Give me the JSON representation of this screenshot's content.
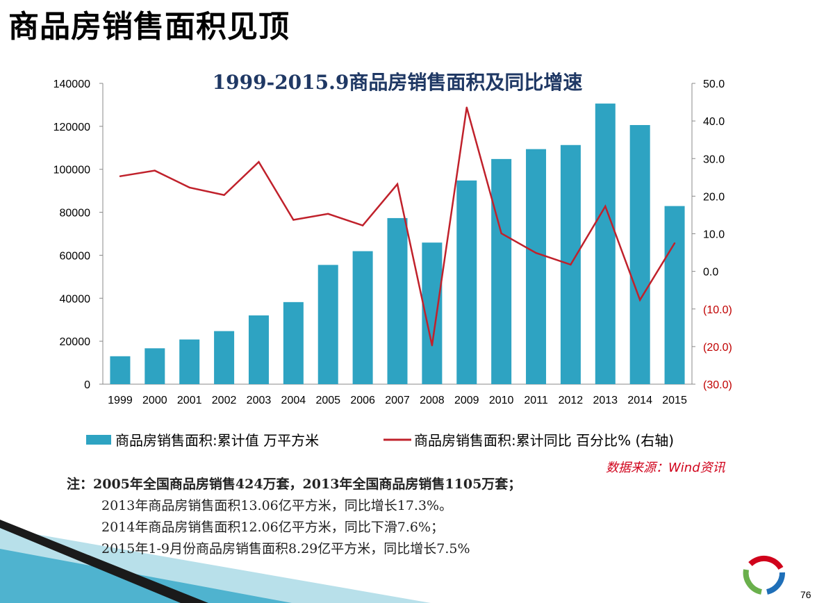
{
  "slide": {
    "title": "商品房销售面积见顶",
    "source": "数据来源：Wind资讯",
    "notes": [
      "注：2005年全国商品房销售424万套，2013年全国商品房销售1105万套；",
      "2013年商品房销售面积13.06亿平方米，同比增长17.3%。",
      "2014年商品房销售面积12.06亿平方米，同比下滑7.6%；",
      "2015年1-9月份商品房销售面积8.29亿平方米，同比增长7.5%"
    ],
    "page_number": "76"
  },
  "colors": {
    "bar": "#2ea3c2",
    "line": "#c0212b",
    "negative_tick": "#c00000",
    "title": "#1f3864"
  },
  "chart_data": {
    "type": "bar+line",
    "title": "1999-2015.9商品房销售面积及同比增速",
    "categories": [
      "1999",
      "2000",
      "2001",
      "2002",
      "2003",
      "2004",
      "2005",
      "2006",
      "2007",
      "2008",
      "2009",
      "2010",
      "2011",
      "2012",
      "2013",
      "2014",
      "2015"
    ],
    "series": [
      {
        "name": "商品房销售面积:累计值 万平方米",
        "type": "bar",
        "axis": "left",
        "values": [
          13000,
          16700,
          20800,
          24700,
          32000,
          38200,
          55500,
          61900,
          77300,
          65900,
          94800,
          104800,
          109400,
          111300,
          130600,
          120600,
          82900
        ]
      },
      {
        "name": "商品房销售面积:累计同比 百分比% (右轴)",
        "type": "line",
        "axis": "right",
        "values": [
          25.3,
          26.8,
          22.3,
          20.3,
          29.1,
          13.7,
          15.3,
          12.2,
          23.2,
          -19.7,
          43.6,
          10.1,
          4.9,
          1.8,
          17.3,
          -7.6,
          7.5
        ]
      }
    ],
    "left_axis": {
      "min": 0,
      "max": 140000,
      "ticks": [
        "0",
        "20000",
        "40000",
        "60000",
        "80000",
        "100000",
        "120000",
        "140000"
      ]
    },
    "right_axis": {
      "min": -30,
      "max": 50,
      "ticks": [
        "(30.0)",
        "(20.0)",
        "(10.0)",
        "0.0",
        "10.0",
        "20.0",
        "30.0",
        "40.0",
        "50.0"
      ]
    },
    "legend_position": "bottom",
    "grid": false
  }
}
